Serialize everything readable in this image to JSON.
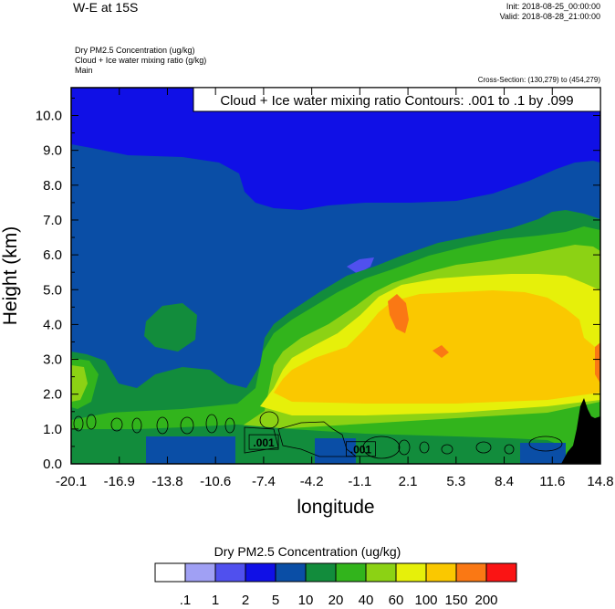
{
  "header": {
    "title": "W-E at 15S",
    "init": "Init: 2018-08-25_00:00:00",
    "valid": "Valid: 2018-08-28_21:00:00",
    "fields": [
      "Dry PM2.5 Concentration   (ug/kg)",
      "Cloud + Ice water mixing ratio   (g/kg)",
      "Main"
    ],
    "cross_section": "Cross-Section: (130,279) to (454,279)"
  },
  "chart_data": {
    "type": "heatmap",
    "annotation": "Cloud + Ice water mixing ratio Contours: .001 to .1 by .099",
    "xlabel": "longitude",
    "ylabel": "Height (km)",
    "xlim": [
      -20.1,
      14.8
    ],
    "ylim": [
      0.0,
      10.8
    ],
    "x_ticks": [
      "-20.1",
      "-16.9",
      "-13.8",
      "-10.6",
      "-7.4",
      "-4.2",
      "-1.1",
      "2.1",
      "5.3",
      "8.4",
      "11.6",
      "14.8"
    ],
    "y_ticks": [
      0.0,
      1.0,
      2.0,
      3.0,
      4.0,
      5.0,
      6.0,
      7.0,
      8.0,
      9.0,
      10.0
    ],
    "y_tick_labels": [
      "0.0",
      "1.0",
      "2.0",
      "3.0",
      "4.0",
      "5.0",
      "6.0",
      "7.0",
      "8.0",
      "9.0",
      "10.0"
    ],
    "contour_labels": [
      {
        "text": ".001",
        "x": -7.4,
        "y": 0.6
      },
      {
        "text": ".001",
        "x": -1.0,
        "y": 0.4
      }
    ],
    "colorbar": {
      "title": "Dry PM2.5 Concentration  (ug/kg)",
      "colors": [
        "#ffffff",
        "#a0a0f4",
        "#5050ee",
        "#1010e6",
        "#0a4ea6",
        "#128c3c",
        "#32b41c",
        "#8cd214",
        "#e6f00a",
        "#fac800",
        "#fa7814",
        "#fa1414"
      ],
      "labels": [
        ".1",
        "1",
        "2",
        "5",
        "10",
        "20",
        "40",
        "60",
        "100",
        "150",
        "200"
      ]
    },
    "fill_colors": {
      "c1": "#1010e6",
      "c2": "#0a4ea6",
      "c3": "#128c3c",
      "c4": "#32b41c",
      "c5": "#8cd214",
      "c6": "#e6f00a",
      "c7": "#fac800",
      "c8": "#fa7814",
      "b1": "#5050ee",
      "terrain": "#000000"
    }
  }
}
